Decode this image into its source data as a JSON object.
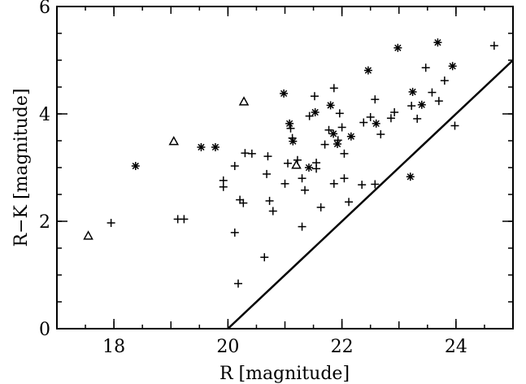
{
  "chart_data": {
    "type": "scatter",
    "title": "",
    "xlabel": "R [magnitude]",
    "ylabel": "R−K [magnitude]",
    "xlim": [
      17,
      25
    ],
    "ylim": [
      0,
      6
    ],
    "xticks": [
      18,
      20,
      22,
      24
    ],
    "yticks": [
      0,
      2,
      4,
      6
    ],
    "grid": false,
    "legend": "none",
    "series": [
      {
        "marker": "plus",
        "points": [
          [
            17.95,
            1.97
          ],
          [
            19.12,
            2.04
          ],
          [
            19.23,
            2.04
          ],
          [
            19.92,
            2.76
          ],
          [
            19.92,
            2.64
          ],
          [
            20.12,
            1.79
          ],
          [
            20.12,
            3.03
          ],
          [
            20.18,
            0.84
          ],
          [
            20.21,
            2.4
          ],
          [
            20.27,
            2.34
          ],
          [
            20.3,
            3.27
          ],
          [
            20.42,
            3.26
          ],
          [
            20.64,
            1.33
          ],
          [
            20.68,
            2.88
          ],
          [
            20.7,
            3.21
          ],
          [
            20.73,
            2.38
          ],
          [
            20.79,
            2.19
          ],
          [
            21.0,
            2.7
          ],
          [
            21.05,
            3.08
          ],
          [
            21.1,
            3.73
          ],
          [
            21.13,
            3.55
          ],
          [
            21.22,
            3.14
          ],
          [
            21.3,
            1.9
          ],
          [
            21.3,
            2.8
          ],
          [
            21.35,
            2.58
          ],
          [
            21.43,
            3.96
          ],
          [
            21.52,
            4.33
          ],
          [
            21.55,
            3.09
          ],
          [
            21.55,
            2.98
          ],
          [
            21.63,
            2.26
          ],
          [
            21.7,
            3.43
          ],
          [
            21.77,
            3.7
          ],
          [
            21.86,
            2.7
          ],
          [
            21.86,
            4.48
          ],
          [
            21.93,
            3.51
          ],
          [
            21.96,
            4.01
          ],
          [
            22.0,
            3.75
          ],
          [
            22.04,
            2.8
          ],
          [
            22.04,
            3.26
          ],
          [
            22.12,
            2.36
          ],
          [
            22.35,
            2.68
          ],
          [
            22.38,
            3.84
          ],
          [
            22.5,
            3.94
          ],
          [
            22.58,
            4.27
          ],
          [
            22.58,
            2.69
          ],
          [
            22.68,
            3.62
          ],
          [
            22.86,
            3.92
          ],
          [
            22.92,
            4.03
          ],
          [
            23.22,
            4.15
          ],
          [
            23.32,
            3.91
          ],
          [
            23.47,
            4.86
          ],
          [
            23.58,
            4.4
          ],
          [
            23.7,
            4.24
          ],
          [
            23.8,
            4.62
          ],
          [
            23.98,
            3.78
          ],
          [
            24.67,
            5.27
          ]
        ]
      },
      {
        "marker": "asterisk",
        "points": [
          [
            18.38,
            3.03
          ],
          [
            19.53,
            3.38
          ],
          [
            19.78,
            3.38
          ],
          [
            20.98,
            4.38
          ],
          [
            21.08,
            3.82
          ],
          [
            21.14,
            3.49
          ],
          [
            21.42,
            3.0
          ],
          [
            21.53,
            4.03
          ],
          [
            21.8,
            4.16
          ],
          [
            21.85,
            3.63
          ],
          [
            21.92,
            3.44
          ],
          [
            22.16,
            3.58
          ],
          [
            22.46,
            4.81
          ],
          [
            22.6,
            3.82
          ],
          [
            22.98,
            5.23
          ],
          [
            23.2,
            2.83
          ],
          [
            23.24,
            4.41
          ],
          [
            23.4,
            4.17
          ],
          [
            23.68,
            5.33
          ],
          [
            23.94,
            4.89
          ]
        ]
      },
      {
        "marker": "triangle",
        "points": [
          [
            17.55,
            1.73
          ],
          [
            19.05,
            3.49
          ],
          [
            20.28,
            4.23
          ],
          [
            21.2,
            3.05
          ]
        ]
      }
    ],
    "reference_line": {
      "x": [
        20.0,
        25.0
      ],
      "y": [
        0.0,
        5.0
      ]
    }
  }
}
